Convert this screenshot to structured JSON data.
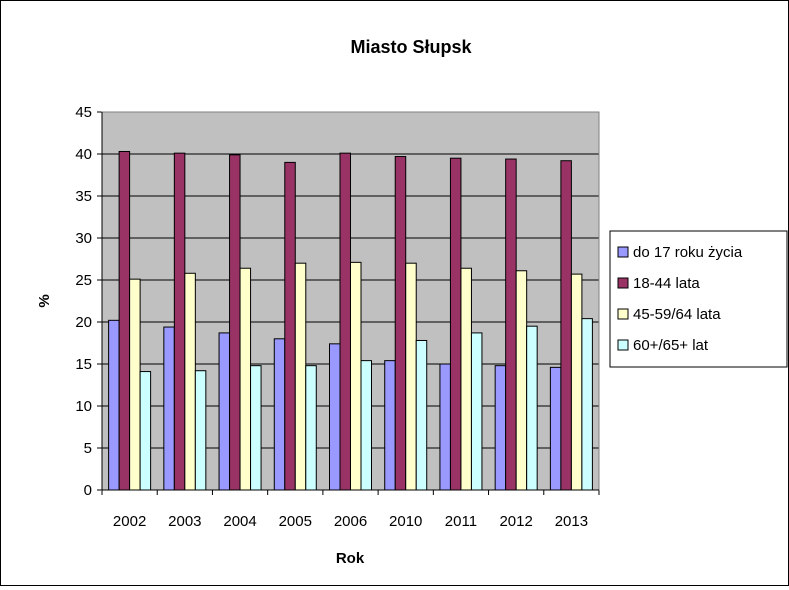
{
  "chart_data": {
    "type": "bar",
    "title": "Miasto Słupsk",
    "xlabel": "Rok",
    "ylabel": "%",
    "ylim": [
      0,
      45
    ],
    "yticks": [
      0,
      5,
      10,
      15,
      20,
      25,
      30,
      35,
      40,
      45
    ],
    "categories": [
      "2002",
      "2003",
      "2004",
      "2005",
      "2006",
      "2010",
      "2011",
      "2012",
      "2013"
    ],
    "series": [
      {
        "name": "do 17 roku życia",
        "color": "#9999ff",
        "values": [
          20.2,
          19.4,
          18.7,
          18.0,
          17.4,
          15.4,
          15.0,
          14.8,
          14.6
        ]
      },
      {
        "name": "18-44 lata",
        "color": "#993366",
        "values": [
          40.3,
          40.1,
          39.9,
          39.0,
          40.1,
          39.7,
          39.5,
          39.4,
          39.2
        ]
      },
      {
        "name": "45-59/64 lata",
        "color": "#ffffcc",
        "values": [
          25.1,
          25.8,
          26.4,
          27.0,
          27.1,
          27.0,
          26.4,
          26.1,
          25.7
        ]
      },
      {
        "name": "60+/65+ lat",
        "color": "#ccffff",
        "values": [
          14.1,
          14.2,
          14.8,
          14.8,
          15.4,
          17.8,
          18.7,
          19.5,
          20.4
        ]
      }
    ],
    "grid": true,
    "plot_background": "#c0c0c0",
    "legend_position": "right"
  }
}
